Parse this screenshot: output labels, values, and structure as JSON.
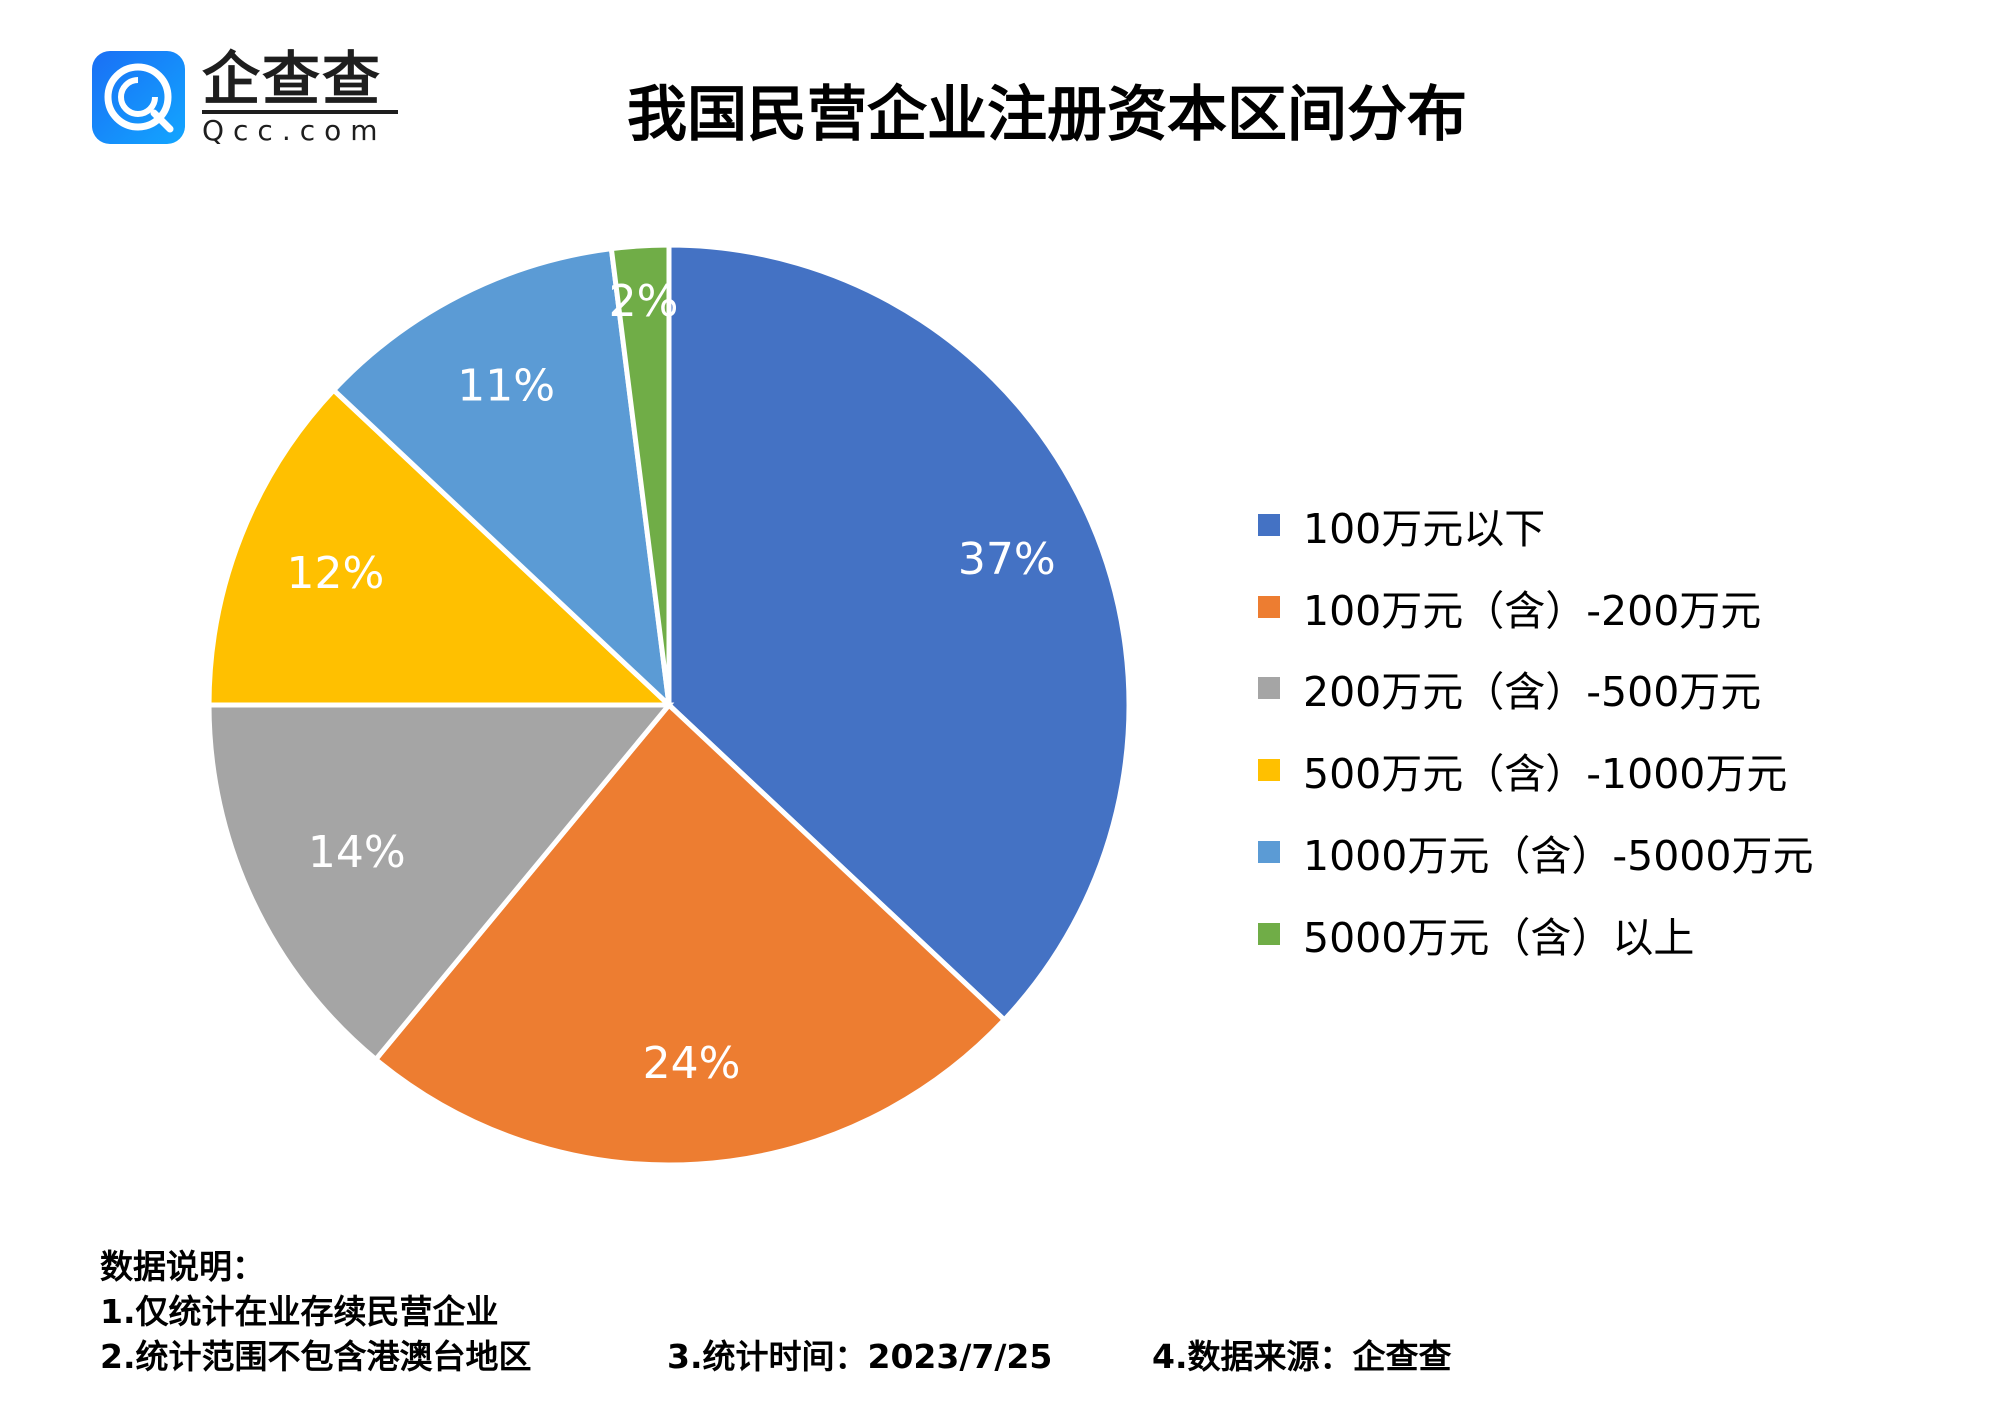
{
  "logo": {
    "name_cn": "企查查",
    "name_en": "Qcc.com"
  },
  "chart_data": {
    "type": "pie",
    "title": "我国民营企业注册资本区间分布",
    "categories": [
      "100万元以下",
      "100万元（含）-200万元",
      "200万元（含）-500万元",
      "500万元（含）-1000万元",
      "1000万元（含）-5000万元",
      "5000万元（含）以上"
    ],
    "values": [
      37,
      24,
      14,
      12,
      11,
      2
    ],
    "labels": [
      "37%",
      "24%",
      "14%",
      "12%",
      "11%",
      "2%"
    ],
    "colors": [
      "#4472c4",
      "#ed7d31",
      "#a5a5a5",
      "#ffc000",
      "#5b9bd5",
      "#70ad47"
    ],
    "start": "top, clockwise",
    "legend_position": "right"
  },
  "notes": {
    "heading": "数据说明：",
    "line1": "1.仅统计在业存续民营企业",
    "line2": "2.统计范围不包含港澳台地区",
    "line3": "3.统计时间：2023/7/25",
    "line4": "4.数据来源：企查查"
  }
}
